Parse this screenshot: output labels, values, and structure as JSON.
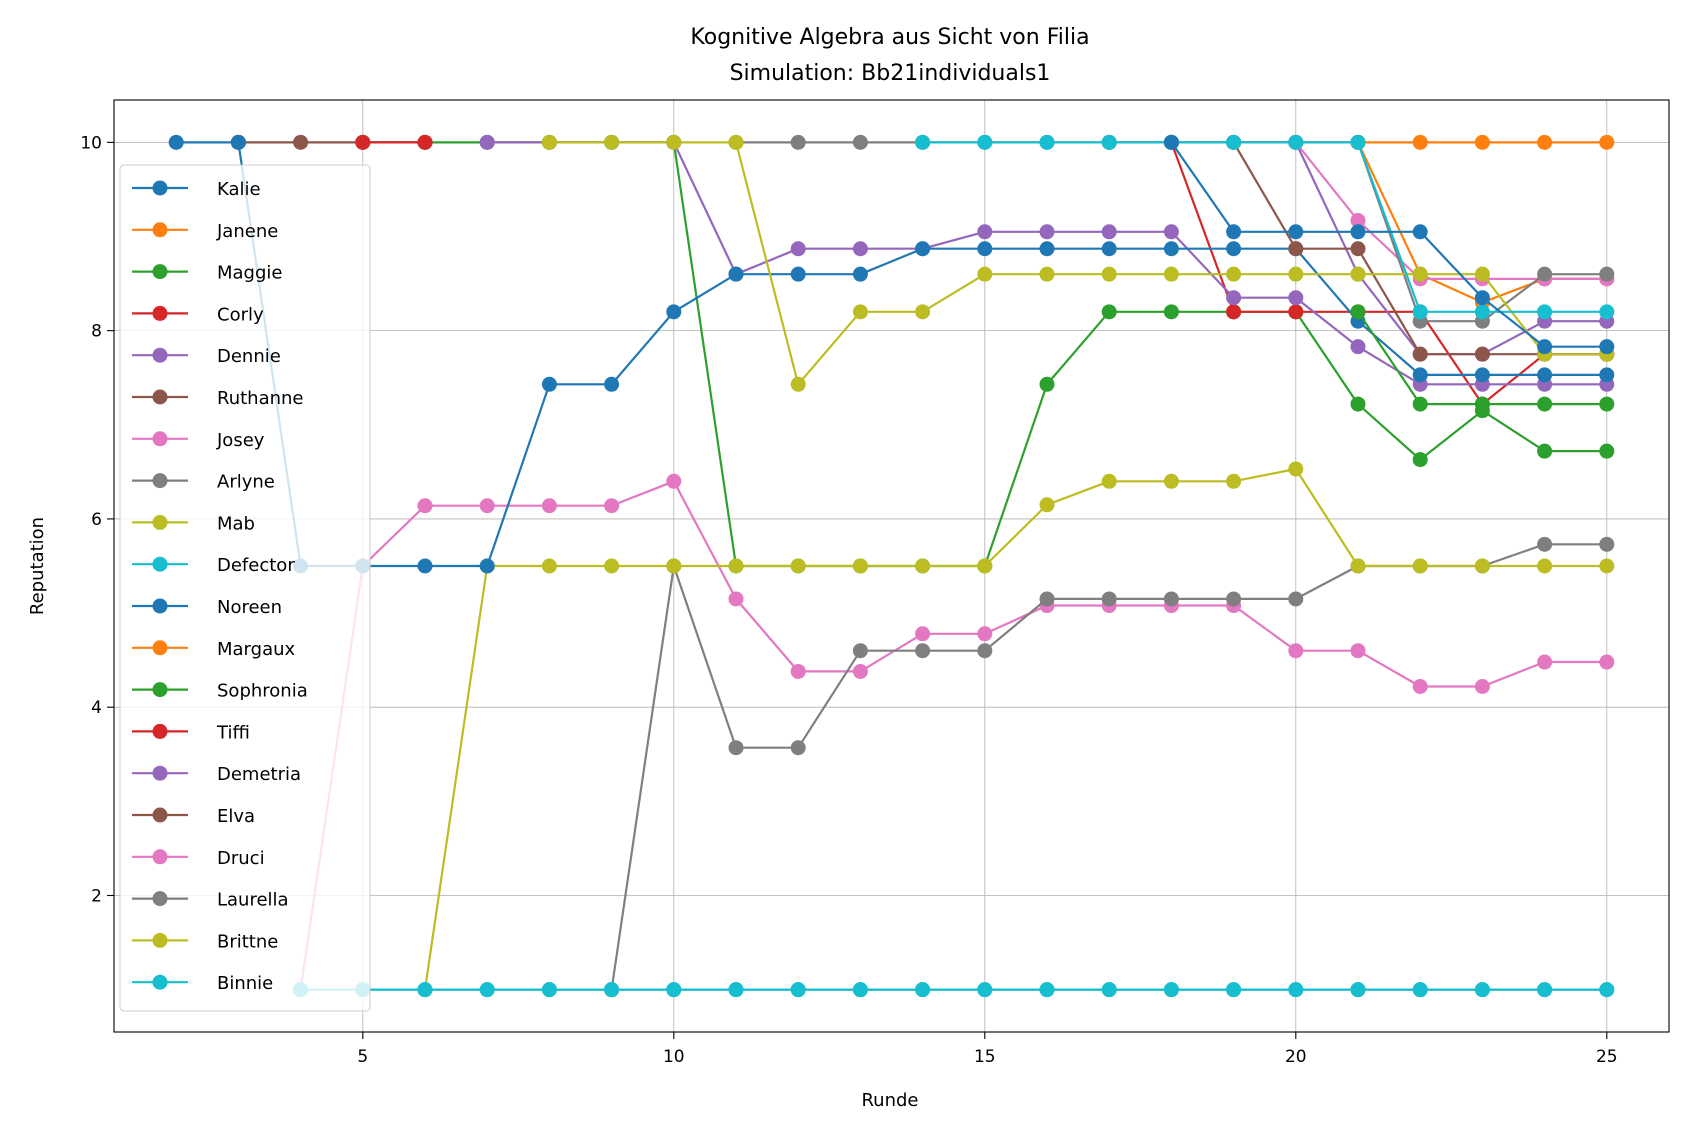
{
  "chart_data": {
    "type": "line",
    "title": "Kognitive Algebra aus Sicht von Filia",
    "subtitle": "Simulation: Bb21individuals1",
    "xlabel": "Runde",
    "ylabel": "Reputation",
    "xlim": [
      1,
      26
    ],
    "ylim": [
      0.55,
      10.45
    ],
    "xticks": [
      5,
      10,
      15,
      20,
      25
    ],
    "yticks": [
      2,
      4,
      6,
      8,
      10
    ],
    "grid": true,
    "legend_position": "left",
    "series": [
      {
        "name": "Kalie",
        "color": "#1f77b4",
        "x": [
          2,
          3
        ],
        "y": [
          10,
          10
        ]
      },
      {
        "name": "Janene",
        "color": "#ff7f0e",
        "x": [
          19,
          20,
          21,
          22,
          23,
          24,
          25
        ],
        "y": [
          10,
          10,
          10,
          8.6,
          8.3,
          8.55,
          8.55
        ]
      },
      {
        "name": "Maggie",
        "color": "#2ca02c",
        "x": [
          5,
          6,
          7,
          8,
          9,
          10,
          11,
          12,
          13,
          14,
          15,
          16,
          17,
          18,
          19,
          20,
          21,
          22,
          23,
          24,
          25
        ],
        "y": [
          10,
          10,
          10,
          10,
          10,
          10,
          5.5,
          5.5,
          5.5,
          5.5,
          5.5,
          7.43,
          8.2,
          8.2,
          8.2,
          8.2,
          7.22,
          6.63,
          7.15,
          6.72,
          6.72
        ]
      },
      {
        "name": "Corly",
        "color": "#d62728",
        "x": [
          17,
          18,
          19,
          20,
          21,
          22,
          23,
          24,
          25
        ],
        "y": [
          10,
          10,
          8.2,
          8.2,
          8.2,
          8.2,
          7.22,
          7.75,
          7.75
        ]
      },
      {
        "name": "Dennie",
        "color": "#9467bd",
        "x": [
          7,
          8,
          9,
          10,
          11,
          12,
          13,
          14,
          15,
          16,
          17,
          18,
          19,
          20,
          21,
          22,
          23,
          24,
          25
        ],
        "y": [
          10,
          10,
          10,
          10,
          8.6,
          8.87,
          8.87,
          8.87,
          9.05,
          9.05,
          9.05,
          9.05,
          8.35,
          8.35,
          7.83,
          7.43,
          7.43,
          7.43,
          7.43
        ]
      },
      {
        "name": "Ruthanne",
        "color": "#8c564b",
        "x": [
          3,
          4,
          5,
          6
        ],
        "y": [
          10,
          10,
          10,
          10
        ]
      },
      {
        "name": "Josey",
        "color": "#e377c2",
        "x": [
          4,
          5,
          6,
          7,
          8,
          9,
          10,
          11,
          12,
          13,
          14,
          15,
          16,
          17,
          18,
          19,
          20,
          21,
          22,
          23,
          24,
          25
        ],
        "y": [
          1,
          5.5,
          6.14,
          6.14,
          6.14,
          6.14,
          6.4,
          5.15,
          4.38,
          4.38,
          4.78,
          4.78,
          5.08,
          5.08,
          5.08,
          5.08,
          4.6,
          4.6,
          4.22,
          4.22,
          4.48,
          4.48
        ]
      },
      {
        "name": "Arlyne",
        "color": "#7f7f7f",
        "x": [
          9,
          10,
          11,
          12,
          13,
          14,
          15,
          16,
          17,
          18,
          19,
          20,
          21,
          22,
          23,
          24,
          25
        ],
        "y": [
          1,
          5.5,
          3.57,
          3.57,
          4.6,
          4.6,
          4.6,
          5.15,
          5.15,
          5.15,
          5.15,
          5.15,
          5.5,
          5.5,
          5.5,
          5.73,
          5.73
        ]
      },
      {
        "name": "Mab",
        "color": "#bcbd22",
        "x": [
          6,
          7,
          8,
          9,
          10,
          11,
          12,
          13,
          14,
          15,
          16,
          17,
          18,
          19,
          20,
          21,
          22,
          23,
          24,
          25
        ],
        "y": [
          1,
          5.5,
          5.5,
          5.5,
          5.5,
          5.5,
          5.5,
          5.5,
          5.5,
          5.5,
          6.15,
          6.4,
          6.4,
          6.4,
          6.53,
          5.5,
          5.5,
          5.5,
          5.5,
          5.5
        ]
      },
      {
        "name": "Defector",
        "color": "#17becf",
        "x": [
          5,
          6,
          7,
          8,
          9,
          10,
          11,
          12,
          13,
          14,
          15,
          16,
          17,
          18,
          19,
          20,
          21,
          22,
          23,
          24,
          25
        ],
        "y": [
          1,
          1,
          1,
          1,
          1,
          1,
          1,
          1,
          1,
          1,
          1,
          1,
          1,
          1,
          1,
          1,
          1,
          1,
          1,
          1,
          1
        ]
      },
      {
        "name": "Noreen",
        "color": "#1f77b4",
        "x": [
          3,
          4,
          5,
          6,
          7,
          8,
          9,
          10,
          11,
          12,
          13,
          14,
          15,
          16,
          17,
          18,
          19,
          20,
          21,
          22,
          23,
          24,
          25
        ],
        "y": [
          10,
          5.5,
          5.5,
          5.5,
          5.5,
          7.43,
          7.43,
          8.2,
          8.6,
          8.6,
          8.6,
          8.87,
          8.87,
          8.87,
          8.87,
          8.87,
          8.87,
          8.87,
          8.1,
          7.53,
          7.53,
          7.53,
          7.53
        ]
      },
      {
        "name": "Margaux",
        "color": "#ff7f0e",
        "x": [
          21,
          22,
          23,
          24,
          25
        ],
        "y": [
          10,
          10,
          10,
          10,
          10
        ]
      },
      {
        "name": "Sophronia",
        "color": "#2ca02c",
        "x": [
          21,
          22,
          23,
          24,
          25
        ],
        "y": [
          8.2,
          7.22,
          7.22,
          7.22,
          7.22
        ]
      },
      {
        "name": "Tiffi",
        "color": "#d62728",
        "x": [
          5,
          6
        ],
        "y": [
          10,
          10
        ]
      },
      {
        "name": "Demetria",
        "color": "#9467bd",
        "x": [
          19,
          20,
          21,
          22,
          23,
          24,
          25
        ],
        "y": [
          10,
          10,
          8.6,
          7.75,
          7.75,
          8.1,
          8.1
        ]
      },
      {
        "name": "Elva",
        "color": "#8c564b",
        "x": [
          18,
          19,
          20,
          21,
          22,
          23,
          24,
          25
        ],
        "y": [
          10,
          10,
          8.87,
          8.87,
          7.75,
          7.75,
          7.75,
          7.75
        ]
      },
      {
        "name": "Druci",
        "color": "#e377c2",
        "x": [
          20,
          21,
          22,
          23,
          24,
          25
        ],
        "y": [
          10,
          9.17,
          8.55,
          8.55,
          8.55,
          8.55
        ]
      },
      {
        "name": "Laurella",
        "color": "#7f7f7f",
        "x": [
          11,
          12,
          13,
          14,
          15,
          16,
          17,
          18,
          19,
          20,
          21,
          22,
          23,
          24,
          25
        ],
        "y": [
          10,
          10,
          10,
          10,
          10,
          10,
          10,
          10,
          10,
          10,
          10,
          8.1,
          8.1,
          8.6,
          8.6
        ]
      },
      {
        "name": "Brittne",
        "color": "#bcbd22",
        "x": [
          8,
          9,
          10,
          11,
          12,
          13,
          14,
          15,
          16,
          17,
          18,
          19,
          20,
          21,
          22,
          23,
          24,
          25
        ],
        "y": [
          10,
          10,
          10,
          10,
          7.43,
          8.2,
          8.2,
          8.6,
          8.6,
          8.6,
          8.6,
          8.6,
          8.6,
          8.6,
          8.6,
          8.6,
          7.75,
          7.75
        ]
      },
      {
        "name": "Binnie",
        "color": "#17becf",
        "x": [
          14,
          15,
          16,
          17,
          18,
          19,
          20,
          21,
          22,
          23,
          24,
          25
        ],
        "y": [
          10,
          10,
          10,
          10,
          10,
          10,
          10,
          10,
          8.2,
          8.2,
          8.2,
          8.2
        ]
      },
      {
        "name": "",
        "color": "#1f77b4",
        "x": [
          18,
          19,
          20,
          21,
          22,
          23,
          24,
          25
        ],
        "y": [
          10,
          9.05,
          9.05,
          9.05,
          9.05,
          8.35,
          7.83,
          7.83
        ]
      },
      {
        "name": "",
        "color": "#17becf",
        "x": [
          4,
          5,
          6,
          7,
          8,
          9,
          10,
          11,
          12,
          13,
          14,
          15,
          16,
          17,
          18,
          19,
          20,
          21,
          22,
          23,
          24,
          25
        ],
        "y": [
          1,
          1,
          1,
          1,
          1,
          1,
          1,
          1,
          1,
          1,
          1,
          1,
          1,
          1,
          1,
          1,
          1,
          1,
          1,
          1,
          1,
          1
        ]
      }
    ]
  }
}
